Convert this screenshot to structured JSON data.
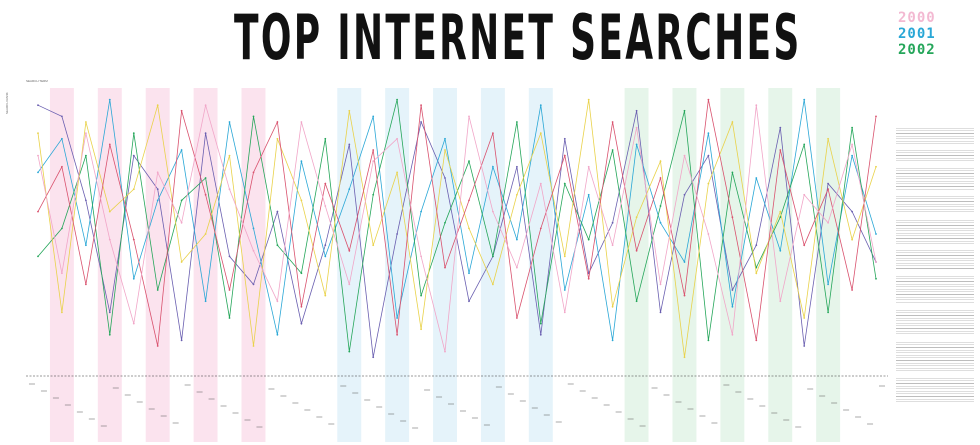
{
  "header": {
    "title": "TOP INTERNET SEARCHES"
  },
  "legend": [
    {
      "label": "2000",
      "color": "#f3b9d2"
    },
    {
      "label": "2001",
      "color": "#2aa7d6"
    },
    {
      "label": "2002",
      "color": "#25a65a"
    }
  ],
  "chart_data": {
    "type": "line",
    "ylabel": "SEARCH RANK",
    "xlabel": "SEARCH TERM",
    "ylim": [
      1,
      51
    ],
    "months": 36,
    "grid": false,
    "series": [
      {
        "color": "#6a5fb0",
        "values": [
          3,
          5,
          20,
          40,
          12,
          18,
          45,
          8,
          30,
          35,
          22,
          42,
          28,
          10,
          48,
          26,
          6,
          16,
          38,
          30,
          14,
          44,
          9,
          33,
          24,
          4,
          40,
          19,
          12,
          36,
          28,
          7,
          46,
          17,
          22,
          31
        ]
      },
      {
        "color": "#2aa7d6",
        "values": [
          15,
          9,
          28,
          2,
          34,
          20,
          11,
          38,
          6,
          25,
          44,
          13,
          30,
          18,
          5,
          41,
          22,
          9,
          33,
          14,
          27,
          3,
          36,
          19,
          45,
          10,
          24,
          31,
          8,
          39,
          16,
          29,
          2,
          35,
          12,
          26
        ]
      },
      {
        "color": "#25a65a",
        "values": [
          30,
          25,
          12,
          44,
          8,
          36,
          20,
          16,
          41,
          5,
          28,
          33,
          9,
          47,
          19,
          2,
          37,
          24,
          13,
          30,
          6,
          42,
          17,
          27,
          11,
          38,
          21,
          4,
          45,
          15,
          32,
          23,
          10,
          40,
          7,
          34
        ]
      },
      {
        "color": "#e9d24a",
        "values": [
          8,
          40,
          6,
          22,
          18,
          3,
          31,
          26,
          12,
          46,
          9,
          20,
          37,
          4,
          28,
          15,
          43,
          11,
          25,
          35,
          19,
          8,
          30,
          2,
          39,
          23,
          13,
          48,
          17,
          6,
          33,
          22,
          41,
          9,
          27,
          14
        ]
      },
      {
        "color": "#d9526e",
        "values": [
          22,
          14,
          35,
          10,
          27,
          46,
          4,
          19,
          36,
          15,
          6,
          39,
          17,
          29,
          11,
          44,
          3,
          32,
          20,
          8,
          41,
          25,
          12,
          34,
          6,
          29,
          16,
          37,
          2,
          23,
          45,
          11,
          28,
          18,
          36,
          5
        ]
      },
      {
        "color": "#f1a6c8",
        "values": [
          12,
          33,
          8,
          27,
          42,
          15,
          24,
          3,
          18,
          29,
          38,
          6,
          21,
          35,
          13,
          9,
          30,
          47,
          5,
          22,
          32,
          17,
          40,
          14,
          28,
          7,
          35,
          12,
          26,
          44,
          3,
          38,
          19,
          24,
          10,
          31
        ]
      }
    ],
    "bands": [
      {
        "month": 1,
        "color": "#fbe3ee"
      },
      {
        "month": 3,
        "color": "#fbe3ee"
      },
      {
        "month": 5,
        "color": "#fbe3ee"
      },
      {
        "month": 7,
        "color": "#fbe3ee"
      },
      {
        "month": 9,
        "color": "#fbe3ee"
      },
      {
        "month": 13,
        "color": "#e5f3fa"
      },
      {
        "month": 15,
        "color": "#e5f3fa"
      },
      {
        "month": 17,
        "color": "#e5f3fa"
      },
      {
        "month": 19,
        "color": "#e5f3fa"
      },
      {
        "month": 21,
        "color": "#e5f3fa"
      },
      {
        "month": 25,
        "color": "#e6f5ea"
      },
      {
        "month": 27,
        "color": "#e6f5ea"
      },
      {
        "month": 29,
        "color": "#e6f5ea"
      },
      {
        "month": 31,
        "color": "#e6f5ea"
      },
      {
        "month": 33,
        "color": "#e6f5ea"
      }
    ]
  }
}
